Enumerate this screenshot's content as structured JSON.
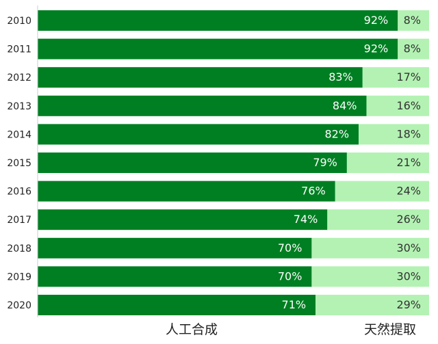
{
  "chart_data": {
    "type": "bar",
    "orientation": "horizontal",
    "stacked": true,
    "percent": true,
    "categories": [
      "2010",
      "2011",
      "2012",
      "2013",
      "2014",
      "2015",
      "2016",
      "2017",
      "2018",
      "2019",
      "2020"
    ],
    "series": [
      {
        "name": "人工合成",
        "color": "#007f22",
        "values": [
          92,
          92,
          83,
          84,
          82,
          79,
          76,
          74,
          70,
          70,
          71
        ],
        "labels": [
          "92%",
          "92%",
          "83%",
          "84%",
          "82%",
          "79%",
          "76%",
          "74%",
          "70%",
          "70%",
          "71%"
        ]
      },
      {
        "name": "天然提取",
        "color": "#b3f2b3",
        "values": [
          8,
          8,
          17,
          16,
          18,
          21,
          24,
          26,
          30,
          30,
          29
        ],
        "labels": [
          "8%",
          "8%",
          "17%",
          "16%",
          "18%",
          "21%",
          "24%",
          "26%",
          "30%",
          "30%",
          "29%"
        ]
      }
    ],
    "xlim": [
      0,
      100
    ],
    "grid": false,
    "legend": "bottom"
  }
}
